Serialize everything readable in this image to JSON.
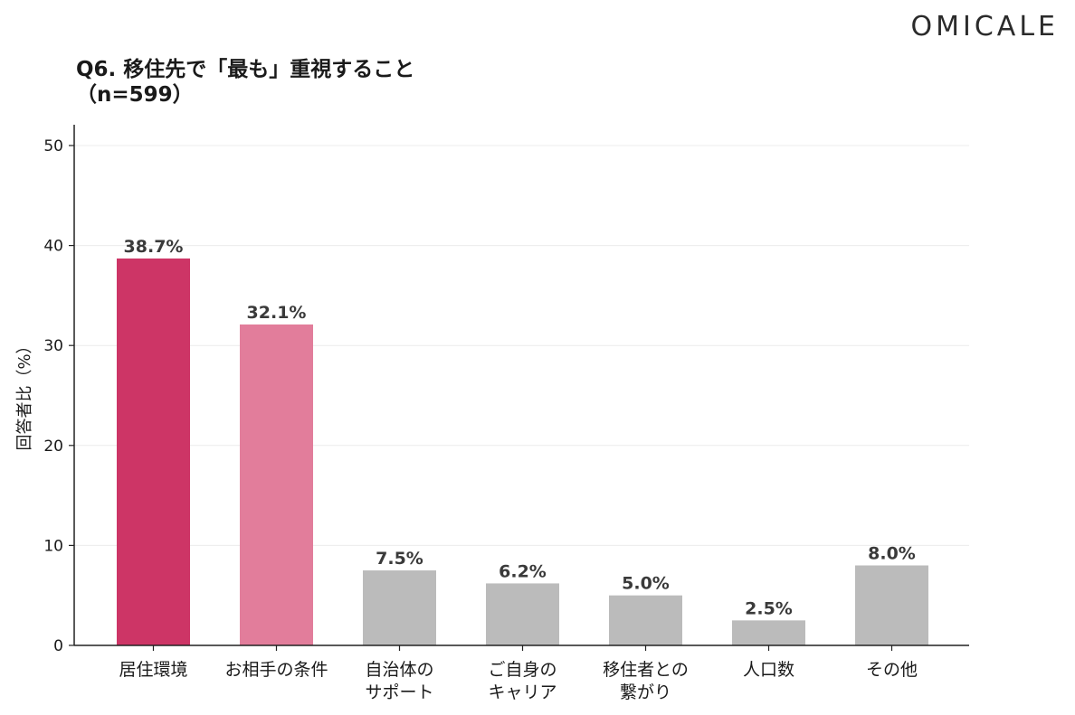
{
  "brand": "OMICALE",
  "header": {
    "title": "Q6. 移住先で「最も」重視すること",
    "subtitle": "（n=599）"
  },
  "chart_data": {
    "type": "bar",
    "title": "Q6. 移住先で「最も」重視すること",
    "subtitle": "（n=599）",
    "xlabel": "",
    "ylabel": "回答者比（%）",
    "ylim": [
      0,
      50
    ],
    "yticks": [
      0,
      10,
      20,
      30,
      40,
      50
    ],
    "grid": true,
    "categories": [
      [
        "居住環境"
      ],
      [
        "お相手の条件"
      ],
      [
        "自治体の",
        "サポート"
      ],
      [
        "ご自身の",
        "キャリア"
      ],
      [
        "移住者との",
        "繋がり"
      ],
      [
        "人口数"
      ],
      [
        "その他"
      ]
    ],
    "values": [
      38.7,
      32.1,
      7.5,
      6.2,
      5.0,
      2.5,
      8.0
    ],
    "value_labels": [
      "38.7%",
      "32.1%",
      "7.5%",
      "6.2%",
      "5.0%",
      "2.5%",
      "8.0%"
    ],
    "colors": [
      "#cd3566",
      "#e27d9b",
      "#bbbbbb",
      "#bbbbbb",
      "#bbbbbb",
      "#bbbbbb",
      "#bbbbbb"
    ]
  }
}
